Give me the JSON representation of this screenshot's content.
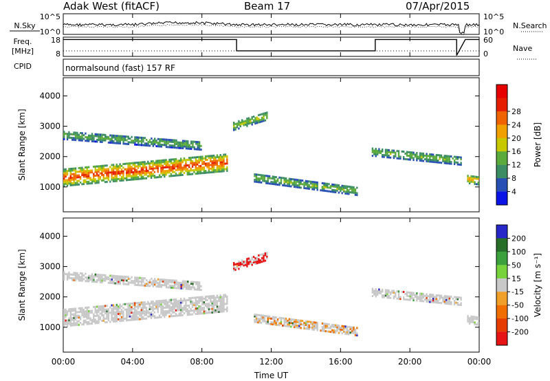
{
  "header": {
    "station": "Adak West (fitACF)",
    "beam": "Beam 17",
    "date": "07/Apr/2015"
  },
  "params": {
    "nsky_label": "N.Sky",
    "nsearch_label": "N.Search",
    "freq_label_top": "Freq.",
    "freq_label_bottom": "[MHz]",
    "nave_label": "Nave",
    "cpid_label": "CPID",
    "cpid_text": "normalsound (fast) 157 RF",
    "noise_ticks": [
      "10^5",
      "10^0"
    ],
    "freq_ticks": [
      "18",
      "8"
    ],
    "nave_ticks": [
      "60",
      "0"
    ],
    "freq_series": [
      {
        "t": 0.0,
        "mhz": 16.8
      },
      {
        "t": 10.0,
        "mhz": 16.8
      },
      {
        "t": 10.0,
        "mhz": 10.9
      },
      {
        "t": 18.0,
        "mhz": 10.9
      },
      {
        "t": 18.0,
        "mhz": 16.8
      },
      {
        "t": 22.7,
        "mhz": 16.8
      },
      {
        "t": 22.7,
        "mhz": 8.5
      },
      {
        "t": 23.2,
        "mhz": 16.8
      },
      {
        "t": 24.0,
        "mhz": 16.8
      }
    ]
  },
  "chart_data": [
    {
      "type": "heatmap",
      "name": "power",
      "ylabel": "Slant Range [km]",
      "xlabel": "Time UT",
      "x_ticks": [
        "00:00",
        "04:00",
        "08:00",
        "12:00",
        "16:00",
        "20:00",
        "00:00"
      ],
      "y_ticks": [
        "1000",
        "2000",
        "3000",
        "4000"
      ],
      "xlim_hours": [
        0,
        24
      ],
      "ylim_km": [
        180,
        4600
      ],
      "colorbar": {
        "label": "Power [dB]",
        "ticks": [
          "4",
          "8",
          "12",
          "16",
          "20",
          "24",
          "28"
        ],
        "colors": [
          "#0a14e6",
          "#2850b4",
          "#3c8c64",
          "#5aaa3c",
          "#c8c800",
          "#f0a000",
          "#f06400",
          "#e61e00",
          "#e60000"
        ]
      },
      "echo_regions": [
        {
          "t0": 0.0,
          "t1": 9.5,
          "r_start": 1350,
          "r_end": 1850,
          "power_db": 28
        },
        {
          "t0": 0.0,
          "t1": 8.0,
          "r_start": 2750,
          "r_end": 2400,
          "power_db": 12
        },
        {
          "t0": 9.8,
          "t1": 11.8,
          "r_start": 3050,
          "r_end": 3400,
          "power_db": 16
        },
        {
          "t0": 11.0,
          "t1": 17.0,
          "r_start": 1350,
          "r_end": 900,
          "power_db": 14
        },
        {
          "t0": 17.8,
          "t1": 23.0,
          "r_start": 2200,
          "r_end": 1900,
          "power_db": 14
        },
        {
          "t0": 23.3,
          "t1": 24.0,
          "r_start": 1300,
          "r_end": 1250,
          "power_db": 22
        }
      ]
    },
    {
      "type": "heatmap",
      "name": "velocity",
      "ylabel": "Slant Range [km]",
      "xlabel": "Time UT",
      "x_ticks": [
        "00:00",
        "04:00",
        "08:00",
        "12:00",
        "16:00",
        "20:00",
        "00:00"
      ],
      "y_ticks": [
        "1000",
        "2000",
        "3000",
        "4000"
      ],
      "xlim_hours": [
        0,
        24
      ],
      "ylim_km": [
        180,
        4600
      ],
      "colorbar": {
        "label": "Velocity [m s⁻¹]",
        "ticks": [
          "200",
          "100",
          "50",
          "15",
          "-15",
          "-50",
          "-100",
          "-200"
        ],
        "colors": [
          "#2828c8",
          "#286e28",
          "#3ca03c",
          "#78d23c",
          "#c8c8c8",
          "#f0a028",
          "#f06e00",
          "#e63c00",
          "#e61414"
        ]
      }
    }
  ]
}
